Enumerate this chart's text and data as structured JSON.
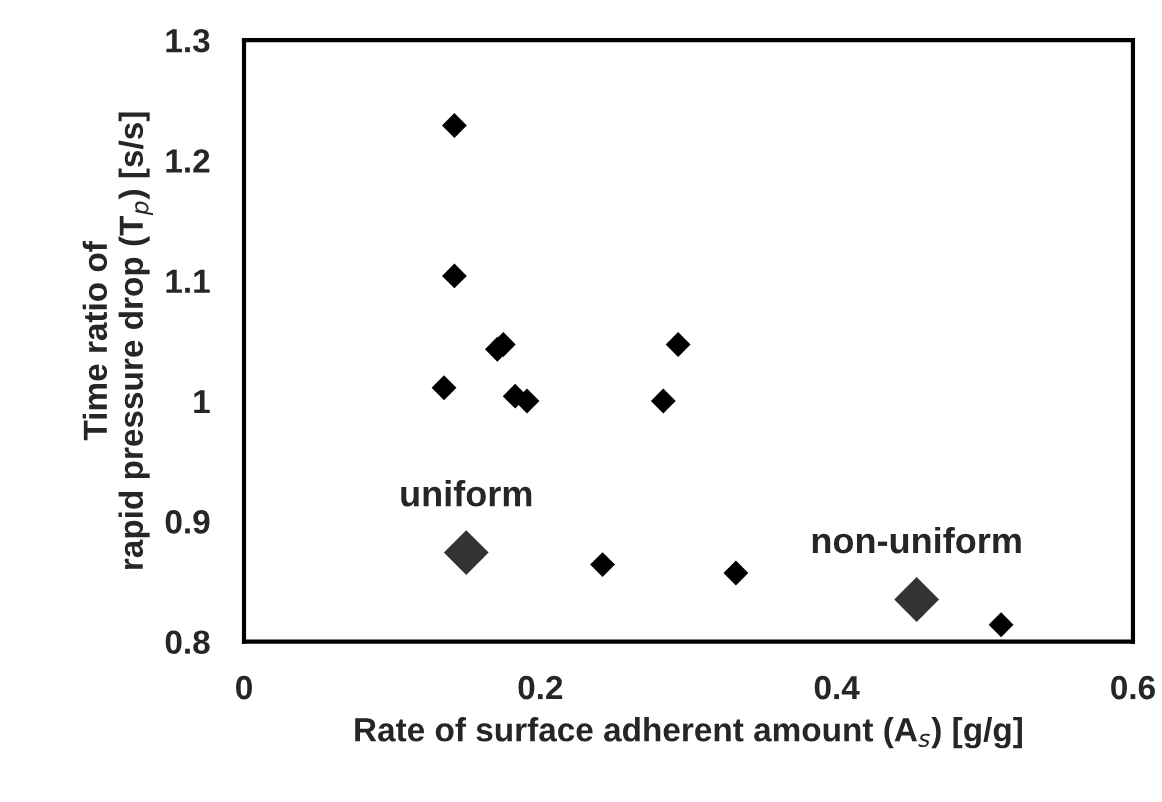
{
  "chart_data": {
    "type": "scatter",
    "xlabel": "Rate of surface adherent amount (A$_{s}$) [g/g]",
    "ylabel": "Time ratio of\nrapid pressure drop (T$_{p}$) [s/s]",
    "series": [
      {
        "color": "#000000",
        "x": [
          0.142,
          0.142,
          0.135,
          0.171,
          0.175,
          0.183,
          0.191,
          0.283,
          0.293,
          0.242,
          0.332,
          0.511
        ],
        "values": [
          1.229,
          1.104,
          1.011,
          1.043,
          1.047,
          1.004,
          1.0,
          1.0,
          1.047,
          0.864,
          0.857,
          0.814
        ]
      },
      {
        "color": "#333333",
        "x": [
          0.15,
          0.454
        ],
        "values": [
          0.874,
          0.835
        ]
      }
    ],
    "annotations": [
      {
        "text": "uniform",
        "x": 0.15,
        "y": 0.874
      },
      {
        "text": "non-uniform",
        "x": 0.454,
        "y": 0.835
      }
    ],
    "xlim": [
      0,
      0.6
    ],
    "xticks": [
      0,
      0.2,
      0.4,
      0.6
    ],
    "ylim": [
      0.8,
      1.3
    ],
    "yticks": [
      0.8,
      0.9,
      1,
      1.1,
      1.2,
      1.3
    ],
    "marker": "diamond",
    "grid": false,
    "legend": false
  }
}
